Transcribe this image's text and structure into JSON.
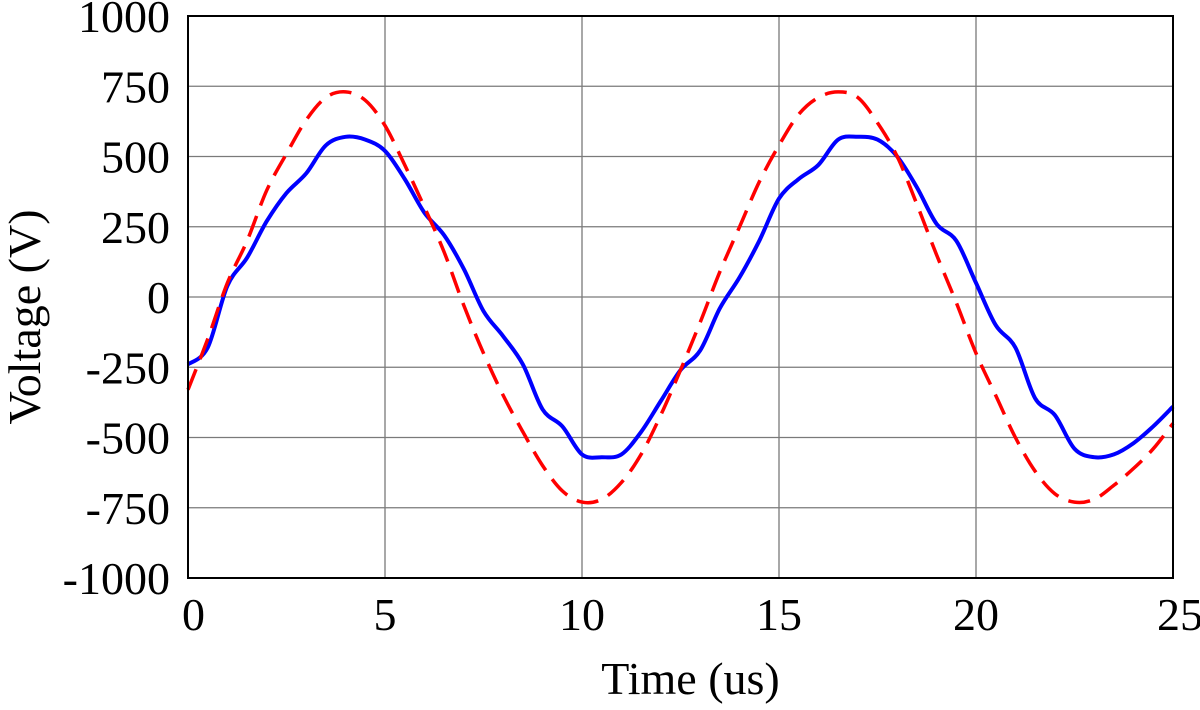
{
  "chart_data": {
    "type": "line",
    "title": "",
    "xlabel": "Time (us)",
    "ylabel": "Voltage (V)",
    "xlim": [
      0,
      25
    ],
    "ylim": [
      -1000,
      1000
    ],
    "xticks": [
      0,
      5,
      10,
      15,
      20,
      25
    ],
    "yticks": [
      1000,
      750,
      500,
      250,
      0,
      -250,
      -500,
      -750,
      -1000
    ],
    "grid": true,
    "series": [
      {
        "style": "solid",
        "color": "#0000ff",
        "x": [
          0,
          0.5,
          1,
          1.5,
          2,
          2.5,
          3,
          3.5,
          4,
          4.5,
          5,
          5.5,
          6,
          6.5,
          7,
          7.5,
          8,
          8.5,
          9,
          9.5,
          10,
          10.5,
          11,
          11.5,
          12,
          12.5,
          13,
          13.5,
          14,
          14.5,
          15,
          15.5,
          16,
          16.5,
          17,
          17.5,
          18,
          18.5,
          19,
          19.5,
          20,
          20.5,
          21,
          21.5,
          22,
          22.5,
          23,
          23.5,
          24,
          24.5,
          25
        ],
        "y": [
          -240,
          -180,
          40,
          140,
          270,
          370,
          440,
          540,
          570,
          560,
          520,
          420,
          300,
          220,
          100,
          -50,
          -140,
          -240,
          -400,
          -460,
          -560,
          -570,
          -560,
          -480,
          -370,
          -260,
          -190,
          -40,
          70,
          200,
          350,
          420,
          470,
          560,
          570,
          560,
          500,
          390,
          260,
          200,
          50,
          -100,
          -180,
          -360,
          -420,
          -540,
          -570,
          -560,
          -520,
          -460,
          -390
        ]
      },
      {
        "style": "dashed",
        "color": "#ff0000",
        "x": [
          0,
          0.5,
          1,
          1.5,
          2,
          2.5,
          3,
          3.5,
          4,
          4.5,
          5,
          5.5,
          6,
          6.5,
          7,
          7.5,
          8,
          8.5,
          9,
          9.5,
          10,
          10.5,
          11,
          11.5,
          12,
          12.5,
          13,
          13.5,
          14,
          14.5,
          15,
          15.5,
          16,
          16.5,
          17,
          17.5,
          18,
          18.5,
          19,
          19.5,
          20,
          20.5,
          21,
          21.5,
          22,
          22.5,
          23,
          23.5,
          24,
          24.5,
          25
        ],
        "y": [
          -330,
          -150,
          50,
          200,
          380,
          510,
          630,
          710,
          730,
          700,
          610,
          470,
          320,
          160,
          -30,
          -200,
          -350,
          -480,
          -600,
          -690,
          -730,
          -720,
          -660,
          -560,
          -420,
          -260,
          -90,
          90,
          250,
          410,
          540,
          650,
          710,
          730,
          710,
          620,
          500,
          330,
          150,
          -20,
          -200,
          -350,
          -500,
          -620,
          -700,
          -730,
          -720,
          -670,
          -610,
          -540,
          -450
        ]
      }
    ]
  }
}
